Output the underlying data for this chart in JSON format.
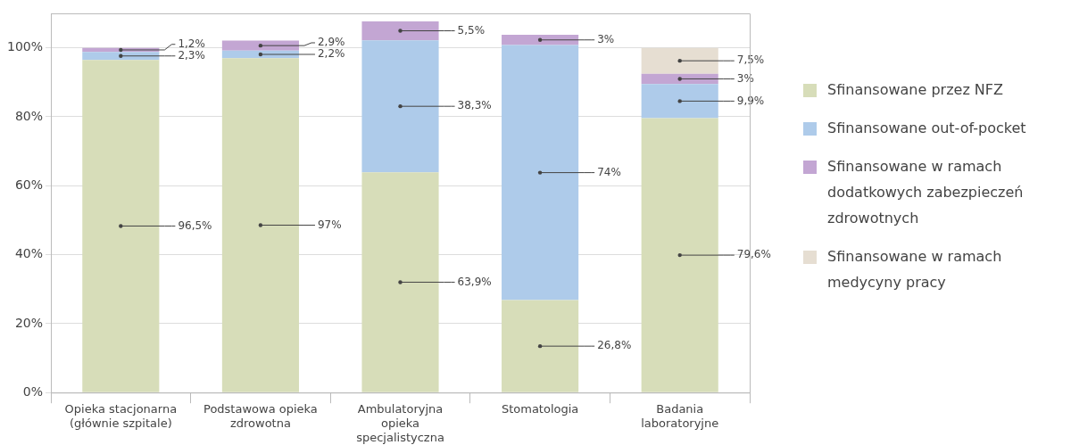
{
  "chart_data": {
    "type": "bar",
    "stacked": true,
    "categories": [
      "Opieka stacjonarna (głównie szpitale)",
      "Podstawowa opieka zdrowotna",
      "Ambulatoryjna opieka specjalistyczna",
      "Stomatologia",
      "Badania laboratoryjne"
    ],
    "series": [
      {
        "name": "Sfinansowane przez NFZ",
        "color": "#d7ddb9",
        "values": [
          96.5,
          97,
          63.9,
          26.8,
          79.6
        ],
        "value_labels": [
          "96,5%",
          "97%",
          "63,9%",
          "26,8%",
          "79,6%"
        ]
      },
      {
        "name": "Sfinansowane out-of-pocket",
        "color": "#aecbea",
        "values": [
          2.3,
          2.2,
          38.3,
          74,
          9.9
        ],
        "value_labels": [
          "2,3%",
          "2,2%",
          "38,3%",
          "74%",
          "9,9%"
        ]
      },
      {
        "name": "Sfinansowane w ramach dodatkowych zabezpieczeń zdrowotnych",
        "color": "#c3a6d3",
        "values": [
          1.2,
          2.9,
          5.5,
          3,
          3
        ],
        "value_labels": [
          "1,2%",
          "2,9%",
          "5,5%",
          "3%",
          "3%"
        ]
      },
      {
        "name": "Sfinansowane w ramach medycyny pracy",
        "color": "#e6ded2",
        "values": [
          null,
          null,
          null,
          null,
          7.5
        ],
        "value_labels": [
          null,
          null,
          null,
          null,
          "7,5%"
        ]
      }
    ],
    "ylim": [
      0,
      110
    ],
    "yticks": [
      {
        "value": 0,
        "label": "0%"
      },
      {
        "value": 20,
        "label": "20%"
      },
      {
        "value": 40,
        "label": "40%"
      },
      {
        "value": 60,
        "label": "60%"
      },
      {
        "value": 80,
        "label": "80%"
      },
      {
        "value": 100,
        "label": "100%"
      }
    ],
    "grid": "y",
    "legend": "right"
  }
}
